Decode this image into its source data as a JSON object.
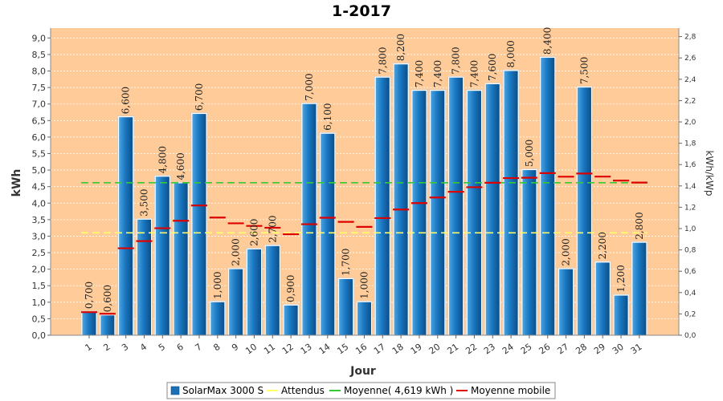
{
  "chart_data": {
    "type": "bar",
    "title": "1-2017",
    "xlabel": "Jour",
    "ylabel": "kWh",
    "ylabel_right": "kWh/kWp",
    "ylim": [
      0,
      9.3
    ],
    "ylim_right": [
      0,
      2.88
    ],
    "yticks": [
      "0,0",
      "0,5",
      "1,0",
      "1,5",
      "2,0",
      "2,5",
      "3,0",
      "3,5",
      "4,0",
      "4,5",
      "5,0",
      "5,5",
      "6,0",
      "6,5",
      "7,0",
      "7,5",
      "8,0",
      "8,5",
      "9,0"
    ],
    "yticks_right": [
      "0,0",
      "0,2",
      "0,4",
      "0,6",
      "0,8",
      "1,0",
      "1,2",
      "1,4",
      "1,6",
      "1,8",
      "2,0",
      "2,2",
      "2,4",
      "2,6",
      "2,8"
    ],
    "categories": [
      "1",
      "2",
      "3",
      "4",
      "5",
      "6",
      "7",
      "8",
      "9",
      "10",
      "11",
      "12",
      "13",
      "14",
      "15",
      "16",
      "17",
      "18",
      "19",
      "20",
      "21",
      "22",
      "23",
      "24",
      "25",
      "26",
      "27",
      "28",
      "29",
      "30",
      "31"
    ],
    "series": [
      {
        "name": "SolarMax 3000 S",
        "color": "#1a6fb5",
        "values": [
          0.7,
          0.6,
          6.6,
          3.5,
          4.8,
          4.6,
          6.7,
          1.0,
          2.0,
          2.6,
          2.7,
          0.9,
          7.0,
          6.1,
          1.7,
          1.0,
          7.8,
          8.2,
          7.4,
          7.4,
          7.8,
          7.4,
          7.6,
          8.0,
          5.0,
          8.4,
          2.0,
          7.5,
          2.2,
          1.2,
          2.8
        ],
        "labels": [
          "0,700",
          "0,600",
          "6,600",
          "3,500",
          "4,800",
          "4,600",
          "6,700",
          "1,000",
          "2,000",
          "2,600",
          "2,700",
          "0,900",
          "7,000",
          "6,100",
          "1,700",
          "1,000",
          "7,800",
          "8,200",
          "7,400",
          "7,400",
          "7,800",
          "7,400",
          "7,600",
          "8,000",
          "5,000",
          "8,400",
          "2,000",
          "7,500",
          "2,200",
          "1,200",
          "2,800"
        ]
      },
      {
        "name": "Attendus",
        "color": "#ffff66",
        "value": 3.1
      },
      {
        "name": "Moyenne( 4,619 kWh )",
        "color": "#33cc33",
        "value": 4.619
      },
      {
        "name": "Moyenne mobile",
        "color": "#dd0000",
        "values": [
          0.7,
          0.65,
          2.633,
          2.85,
          3.24,
          3.467,
          3.929,
          3.563,
          3.389,
          3.31,
          3.255,
          3.058,
          3.362,
          3.557,
          3.433,
          3.281,
          3.547,
          3.806,
          4.0,
          4.17,
          4.343,
          4.482,
          4.617,
          4.758,
          4.768,
          4.908,
          4.8,
          4.896,
          4.803,
          4.683,
          4.623
        ]
      }
    ],
    "legend": "bottom-center",
    "grid": true,
    "colors": {
      "plot_background": "#ffcc99",
      "grid": "#ffffff"
    }
  }
}
